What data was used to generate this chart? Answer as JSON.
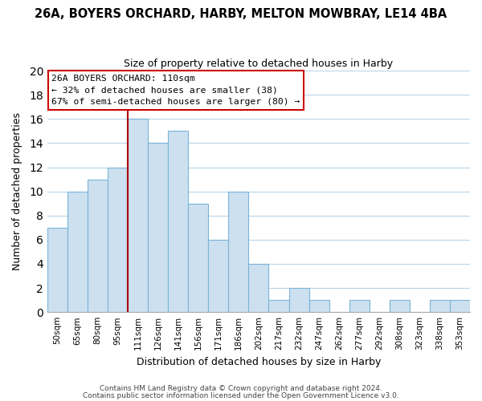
{
  "title": "26A, BOYERS ORCHARD, HARBY, MELTON MOWBRAY, LE14 4BA",
  "subtitle": "Size of property relative to detached houses in Harby",
  "xlabel": "Distribution of detached houses by size in Harby",
  "ylabel": "Number of detached properties",
  "bar_labels": [
    "50sqm",
    "65sqm",
    "80sqm",
    "95sqm",
    "111sqm",
    "126sqm",
    "141sqm",
    "156sqm",
    "171sqm",
    "186sqm",
    "202sqm",
    "217sqm",
    "232sqm",
    "247sqm",
    "262sqm",
    "277sqm",
    "292sqm",
    "308sqm",
    "323sqm",
    "338sqm",
    "353sqm"
  ],
  "bar_heights": [
    7,
    10,
    11,
    12,
    16,
    14,
    15,
    9,
    6,
    10,
    4,
    1,
    2,
    1,
    0,
    1,
    0,
    1,
    0,
    1,
    1
  ],
  "bar_color": "#cce0f0",
  "bar_edge_color": "#7ab4d8",
  "vline_at_label_index": 4,
  "vline_color": "#aa0000",
  "annotation_title": "26A BOYERS ORCHARD: 110sqm",
  "annotation_line1": "← 32% of detached houses are smaller (38)",
  "annotation_line2": "67% of semi-detached houses are larger (80) →",
  "annotation_box_edgecolor": "#cc0000",
  "annotation_box_facecolor": "#ffffff",
  "ylim": [
    0,
    20
  ],
  "yticks": [
    0,
    2,
    4,
    6,
    8,
    10,
    12,
    14,
    16,
    18,
    20
  ],
  "footer_line1": "Contains HM Land Registry data © Crown copyright and database right 2024.",
  "footer_line2": "Contains public sector information licensed under the Open Government Licence v3.0.",
  "background_color": "#ffffff",
  "grid_color": "#b8d4e8"
}
